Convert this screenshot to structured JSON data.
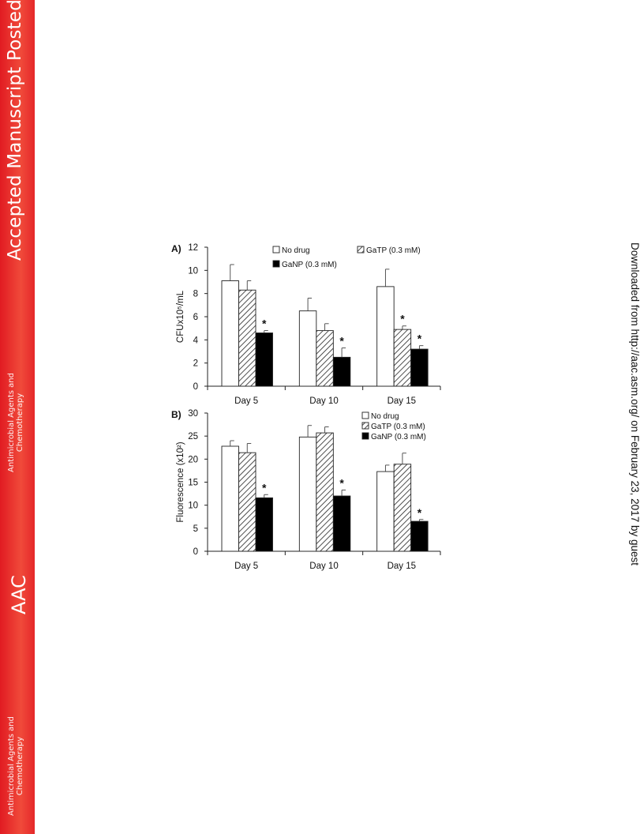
{
  "sidebar": {
    "banner": "Accepted Manuscript Posted Online",
    "journal_name_line1": "Antimicrobial Agents and",
    "journal_name_line2": "Chemotherapy",
    "acronym": "AAC",
    "accent_color": "#e11b22"
  },
  "download_note": "Downloaded from http://aac.asm.org/ on February 23, 2017 by guest",
  "legend": {
    "no_drug": "No drug",
    "gatp": "GaTP (0.3 mM)",
    "ganp": "GaNP (0.3 mM)"
  },
  "chart_data": [
    {
      "type": "bar",
      "panel": "A)",
      "categories": [
        "Day 5",
        "Day 10",
        "Day 15"
      ],
      "series": [
        {
          "name": "No drug",
          "values": [
            9.1,
            6.5,
            8.6
          ],
          "errors": [
            1.4,
            1.1,
            1.5
          ],
          "fill": "white"
        },
        {
          "name": "GaTP (0.3 mM)",
          "values": [
            8.3,
            4.8,
            4.9
          ],
          "errors": [
            0.8,
            0.6,
            0.3
          ],
          "fill": "hatch"
        },
        {
          "name": "GaNP (0.3 mM)",
          "values": [
            4.6,
            2.5,
            3.2
          ],
          "errors": [
            0.2,
            0.8,
            0.3
          ],
          "fill": "black"
        }
      ],
      "significance": [
        null,
        null,
        "*",
        null,
        null,
        "*",
        null,
        "*",
        "*"
      ],
      "ylabel": "CFUx10⁵/mL",
      "yticks": [
        0,
        2,
        4,
        6,
        8,
        10,
        12
      ],
      "ylim": [
        0,
        12
      ]
    },
    {
      "type": "bar",
      "panel": "B)",
      "categories": [
        "Day 5",
        "Day 10",
        "Day 15"
      ],
      "series": [
        {
          "name": "No drug",
          "values": [
            22.8,
            24.8,
            17.3
          ],
          "errors": [
            1.2,
            2.5,
            1.4
          ],
          "fill": "white"
        },
        {
          "name": "GaTP (0.3 mM)",
          "values": [
            21.4,
            25.7,
            18.9
          ],
          "errors": [
            2.0,
            1.3,
            2.4
          ],
          "fill": "hatch"
        },
        {
          "name": "GaNP (0.3 mM)",
          "values": [
            11.6,
            12.0,
            6.5
          ],
          "errors": [
            0.7,
            1.3,
            0.4
          ],
          "fill": "black"
        }
      ],
      "significance": [
        null,
        null,
        "*",
        null,
        null,
        "*",
        null,
        null,
        "*"
      ],
      "ylabel": "Fluorescence (x10²)",
      "yticks": [
        0,
        5,
        10,
        15,
        20,
        25,
        30
      ],
      "ylim": [
        0,
        30
      ]
    }
  ]
}
